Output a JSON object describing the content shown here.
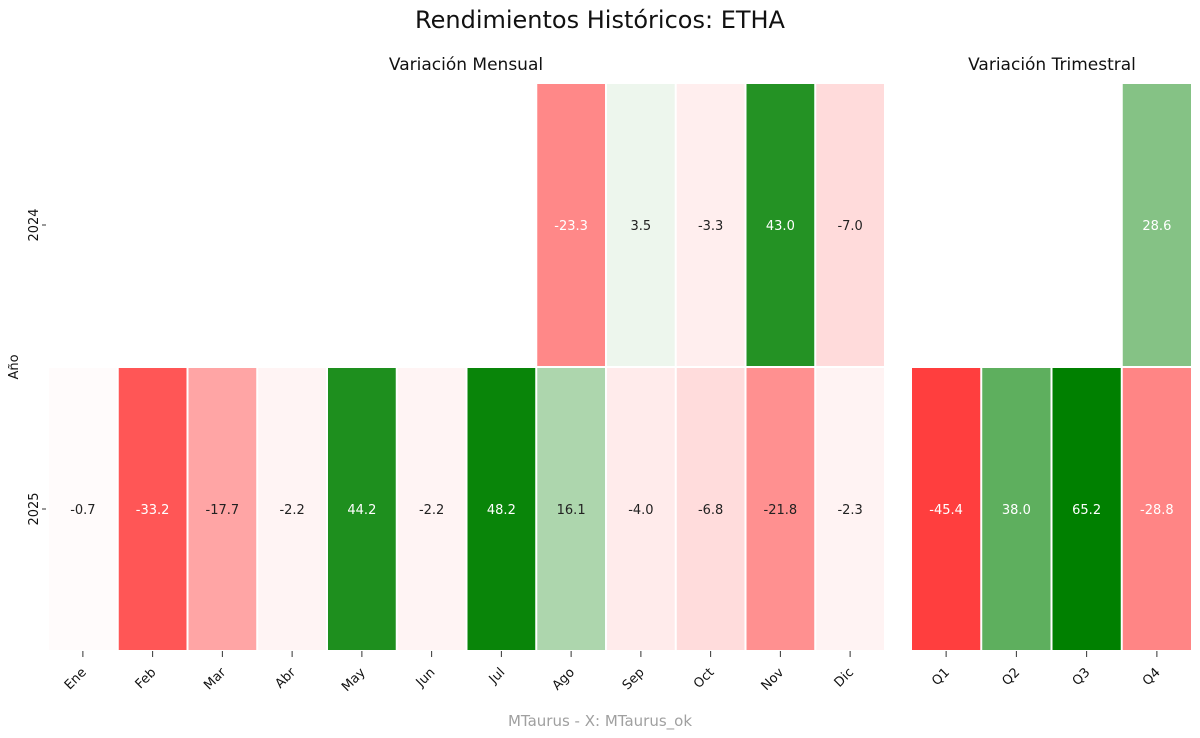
{
  "chart_data": [
    {
      "type": "heatmap",
      "name": "monthly",
      "title": "Variación Mensual",
      "categories": [
        "Ene",
        "Feb",
        "Mar",
        "Abr",
        "May",
        "Jun",
        "Jul",
        "Ago",
        "Sep",
        "Oct",
        "Nov",
        "Dic"
      ],
      "rows": [
        "2024",
        "2025"
      ],
      "values": [
        [
          null,
          null,
          null,
          null,
          null,
          null,
          null,
          -23.3,
          3.5,
          -3.3,
          43.0,
          -7.0
        ],
        [
          -0.7,
          -33.2,
          -17.7,
          -2.2,
          44.2,
          -2.2,
          48.2,
          16.1,
          -4.0,
          -6.8,
          -21.8,
          -2.3
        ]
      ],
      "value_labels": [
        [
          null,
          null,
          null,
          null,
          null,
          null,
          null,
          "-23.3",
          "3.5",
          "-3.3",
          "43.0",
          "-7.0"
        ],
        [
          "-0.7",
          "-33.2",
          "-17.7",
          "-2.2",
          "44.2",
          "-2.2",
          "48.2",
          "16.1",
          "-4.0",
          "-6.8",
          "-21.8",
          "-2.3"
        ]
      ],
      "ylabel": "Año",
      "color_range": [
        -50,
        50
      ]
    },
    {
      "type": "heatmap",
      "name": "quarterly",
      "title": "Variación Trimestral",
      "categories": [
        "Q1",
        "Q2",
        "Q3",
        "Q4"
      ],
      "rows": [
        "2024",
        "2025"
      ],
      "values": [
        [
          null,
          null,
          null,
          28.6
        ],
        [
          -45.4,
          38.0,
          65.2,
          -28.8
        ]
      ],
      "value_labels": [
        [
          null,
          null,
          null,
          "28.6"
        ],
        [
          "-45.4",
          "38.0",
          "65.2",
          "-28.8"
        ]
      ],
      "color_range": [
        -60,
        60
      ]
    }
  ],
  "title": "Rendimientos Históricos: ETHA",
  "footer": "MTaurus - X: MTaurus_ok",
  "colors": {
    "negative": "#ff0000",
    "positive": "#008000",
    "neutral": "#ffffff",
    "label_dark": "#222222",
    "label_light": "#ffffff"
  }
}
